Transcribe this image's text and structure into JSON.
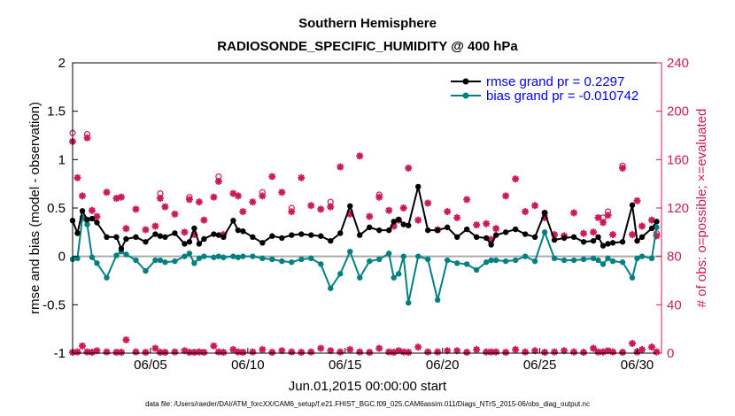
{
  "chart_data": {
    "type": "line",
    "title": "Southern Hemisphere",
    "subtitle": "RADIOSONDE_SPECIFIC_HUMIDITY @ 400 hPa",
    "xlabel": "Jun.01,2015 00:00:00 start",
    "ylabel": "rmse and bias (model - observation)",
    "ylabel_right": "# of obs: o=possible; ×=evaluated",
    "footnote": "data file: /Users/raeder/DAI/ATM_forcXX/CAM6_setup/f.e21.FHIST_BGC.f09_025.CAM6assim.011/Diags_NTrS_2015-06/obs_diag_output.nc",
    "xlim": [
      1,
      31.25
    ],
    "ylim": [
      -1,
      2
    ],
    "ylim_right": [
      0,
      240
    ],
    "x_tick_values": [
      5,
      10,
      15,
      20,
      25,
      30
    ],
    "x_tick_labels": [
      "06/05",
      "06/10",
      "06/15",
      "06/20",
      "06/25",
      "06/30"
    ],
    "y_tick_values": [
      -1,
      -0.5,
      0,
      0.5,
      1,
      1.5,
      2
    ],
    "y_tick_labels": [
      "-1",
      "-0.5",
      "0",
      "0.5",
      "1",
      "1.5",
      "2"
    ],
    "y_right_tick_values": [
      0,
      40,
      80,
      120,
      160,
      200,
      240
    ],
    "y_right_tick_labels": [
      "0",
      "40",
      "80",
      "120",
      "160",
      "200",
      "240"
    ],
    "legend_position": "top-right",
    "colors": {
      "rmse": "#000000",
      "bias": "#008080",
      "obs": "#cc1a55",
      "zero_line": "#aaaaaa"
    },
    "series": [
      {
        "name": "rmse grand pr = 0.2297",
        "axis": "left",
        "x": [
          1,
          1.25,
          1.5,
          1.75,
          2,
          2.25,
          2.75,
          3.25,
          3.5,
          3.75,
          4.25,
          4.75,
          5.25,
          5.5,
          5.75,
          6.25,
          6.75,
          7,
          7.25,
          7.5,
          7.75,
          8.25,
          8.5,
          8.75,
          9.25,
          9.5,
          9.75,
          10.25,
          10.75,
          11.25,
          11.75,
          12.25,
          12.75,
          13.25,
          13.75,
          14.25,
          14.75,
          15.25,
          15.75,
          16.25,
          16.75,
          17.25,
          17.5,
          17.75,
          18,
          18.25,
          18.75,
          19.25,
          19.75,
          20.25,
          20.75,
          21.25,
          21.75,
          22.25,
          22.5,
          22.75,
          23.25,
          23.75,
          24.25,
          24.75,
          25.25,
          25.75,
          26.25,
          26.75,
          27.25,
          27.75,
          28,
          28.25,
          28.5,
          28.75,
          29.25,
          29.75,
          30,
          30.25,
          30.75,
          31
        ],
        "values": [
          0.37,
          0.24,
          0.47,
          0.38,
          0.39,
          0.35,
          0.2,
          0.2,
          0.08,
          0.18,
          0.2,
          0.15,
          0.23,
          0.21,
          0.2,
          0.24,
          0.13,
          0.15,
          0.29,
          0.13,
          0.18,
          0.23,
          0.22,
          0.2,
          0.37,
          0.27,
          0.26,
          0.2,
          0.14,
          0.21,
          0.19,
          0.22,
          0.23,
          0.22,
          0.21,
          0.16,
          0.24,
          0.52,
          0.22,
          0.3,
          0.27,
          0.27,
          0.36,
          0.38,
          0.33,
          0.32,
          0.72,
          0.27,
          0.27,
          0.3,
          0.2,
          0.28,
          0.2,
          0.19,
          0.12,
          0.22,
          0.25,
          0.28,
          0.23,
          0.2,
          0.45,
          0.17,
          0.19,
          0.2,
          0.15,
          0.16,
          0.2,
          0.11,
          0.13,
          0.14,
          0.15,
          0.53,
          0.16,
          0.2,
          0.29,
          0.36
        ]
      },
      {
        "name": "bias grand pr = -0.010742",
        "axis": "left",
        "x": [
          1,
          1.25,
          1.5,
          1.75,
          2,
          2.25,
          2.75,
          3.25,
          3.5,
          3.75,
          4.25,
          4.75,
          5.25,
          5.5,
          5.75,
          6.25,
          6.75,
          7,
          7.25,
          7.5,
          7.75,
          8.25,
          8.5,
          8.75,
          9.25,
          9.5,
          9.75,
          10.25,
          10.75,
          11.25,
          11.75,
          12.25,
          12.75,
          13.25,
          13.75,
          14.25,
          14.75,
          15.25,
          15.75,
          16.25,
          16.75,
          17.25,
          17.5,
          17.75,
          18,
          18.25,
          18.75,
          19.25,
          19.75,
          20.25,
          20.75,
          21.25,
          21.75,
          22.25,
          22.5,
          22.75,
          23.25,
          23.75,
          24.25,
          24.75,
          25.25,
          25.75,
          26.25,
          26.75,
          27.25,
          27.75,
          28,
          28.25,
          28.5,
          28.75,
          29.25,
          29.75,
          30,
          30.25,
          30.75,
          31
        ],
        "values": [
          -0.03,
          -0.02,
          0.4,
          0.33,
          -0.01,
          -0.07,
          -0.22,
          0.01,
          0.05,
          0.02,
          -0.04,
          -0.15,
          -0.04,
          -0.04,
          -0.06,
          -0.05,
          0.0,
          0.03,
          -0.07,
          -0.02,
          0.0,
          -0.01,
          0.0,
          -0.01,
          0.0,
          -0.01,
          0.0,
          0.0,
          -0.02,
          -0.03,
          -0.05,
          -0.06,
          -0.03,
          -0.02,
          -0.08,
          -0.33,
          -0.18,
          0.05,
          -0.22,
          -0.05,
          -0.03,
          0.03,
          -0.22,
          -0.18,
          0.0,
          -0.48,
          0.0,
          -0.03,
          -0.45,
          -0.04,
          -0.07,
          -0.08,
          -0.14,
          -0.06,
          -0.04,
          -0.04,
          -0.05,
          -0.04,
          0.0,
          -0.05,
          0.25,
          -0.02,
          -0.04,
          -0.04,
          -0.03,
          -0.02,
          -0.04,
          -0.08,
          -0.02,
          -0.05,
          -0.06,
          -0.22,
          -0.02,
          0.0,
          -0.02,
          0.3
        ]
      },
      {
        "name": "obs possible",
        "axis": "right",
        "x": [
          1,
          1.25,
          1.5,
          1.75,
          2,
          2.25,
          2.75,
          3.25,
          3.5,
          3.75,
          4.25,
          4.75,
          5.25,
          5.5,
          5.75,
          6.25,
          6.75,
          7,
          7.25,
          7.5,
          7.75,
          8.25,
          8.5,
          8.75,
          9.25,
          9.5,
          9.75,
          10.25,
          10.75,
          11.25,
          11.75,
          12.25,
          12.75,
          13.25,
          13.75,
          14.25,
          14.75,
          15.25,
          15.75,
          16.25,
          16.75,
          17.25,
          17.5,
          17.75,
          18,
          18.25,
          18.75,
          19.25,
          19.75,
          20.25,
          20.75,
          21.25,
          21.75,
          22.25,
          22.5,
          22.75,
          23.25,
          23.75,
          24.25,
          24.75,
          25.25,
          25.75,
          26.25,
          26.75,
          27.25,
          27.75,
          28,
          28.25,
          28.5,
          28.75,
          29.25,
          29.75,
          30,
          30.25,
          30.75,
          31
        ],
        "values": [
          182,
          145,
          130,
          181,
          118,
          113,
          133,
          128,
          129,
          104,
          120,
          103,
          106,
          132,
          122,
          115,
          101,
          129,
          98,
          126,
          111,
          129,
          146,
          99,
          132,
          131,
          118,
          126,
          133,
          146,
          133,
          120,
          146,
          123,
          120,
          125,
          155,
          117,
          163,
          113,
          131,
          118,
          106,
          110,
          120,
          153,
          111,
          125,
          103,
          117,
          112,
          127,
          107,
          107,
          95,
          103,
          130,
          145,
          117,
          123,
          116,
          98,
          97,
          116,
          100,
          101,
          113,
          112,
          117,
          98,
          155,
          98,
          127,
          106,
          110,
          99
        ],
        "labels_visible": true
      },
      {
        "name": "obs evaluated",
        "axis": "right",
        "x": [
          1,
          1.25,
          1.5,
          1.75,
          2,
          2.25,
          2.75,
          3.25,
          3.5,
          3.75,
          4.25,
          4.75,
          5.25,
          5.5,
          5.75,
          6.25,
          6.75,
          7,
          7.25,
          7.5,
          7.75,
          8.25,
          8.5,
          8.75,
          9.25,
          9.5,
          9.75,
          10.25,
          10.75,
          11.25,
          11.75,
          12.25,
          12.75,
          13.25,
          13.75,
          14.25,
          14.75,
          15.25,
          15.75,
          16.25,
          16.75,
          17.25,
          17.5,
          17.75,
          18,
          18.25,
          18.75,
          19.25,
          19.75,
          20.25,
          20.75,
          21.25,
          21.75,
          22.25,
          22.5,
          22.75,
          23.25,
          23.75,
          24.25,
          24.75,
          25.25,
          25.75,
          26.25,
          26.75,
          27.25,
          27.75,
          28,
          28.25,
          28.5,
          28.75,
          29.25,
          29.75,
          30,
          30.25,
          30.75,
          31
        ],
        "values": [
          175,
          145,
          130,
          178,
          118,
          113,
          133,
          128,
          129,
          103,
          119,
          102,
          105,
          128,
          121,
          115,
          100,
          127,
          98,
          125,
          110,
          129,
          142,
          98,
          132,
          130,
          117,
          125,
          130,
          146,
          133,
          117,
          145,
          122,
          119,
          121,
          154,
          115,
          163,
          113,
          129,
          118,
          105,
          110,
          120,
          153,
          110,
          124,
          102,
          117,
          112,
          127,
          106,
          107,
          94,
          103,
          130,
          144,
          117,
          122,
          112,
          98,
          97,
          116,
          99,
          100,
          112,
          108,
          114,
          98,
          153,
          98,
          126,
          105,
          110,
          97
        ]
      },
      {
        "name": "obs evaluated (low)",
        "axis": "right",
        "x": [
          1,
          1.25,
          1.5,
          1.75,
          2,
          2.25,
          2.75,
          3.25,
          3.5,
          3.75,
          4.25,
          4.75,
          5.25,
          5.5,
          5.75,
          6.25,
          6.75,
          7,
          7.25,
          7.5,
          7.75,
          8.25,
          8.5,
          8.75,
          9.25,
          9.5,
          9.75,
          10.25,
          10.75,
          11.25,
          11.75,
          12.25,
          12.75,
          13.25,
          13.75,
          14.25,
          14.75,
          15.25,
          15.75,
          16.25,
          16.75,
          17.25,
          17.5,
          17.75,
          18,
          18.25,
          18.75,
          19.25,
          19.75,
          20.25,
          20.75,
          21.25,
          21.75,
          22.25,
          22.5,
          22.75,
          23.25,
          23.75,
          24.25,
          24.75,
          25.25,
          25.75,
          26.25,
          26.75,
          27.25,
          27.75,
          28,
          28.25,
          28.5,
          28.75,
          29.25,
          29.75,
          30,
          30.25,
          30.75,
          31
        ],
        "values": [
          0,
          1,
          6,
          1,
          0,
          2,
          1,
          0,
          0,
          11,
          1,
          0,
          4,
          0,
          0,
          1,
          2,
          0,
          0,
          1,
          0,
          6,
          1,
          0,
          3,
          1,
          0,
          1,
          3,
          0,
          2,
          1,
          0,
          1,
          4,
          2,
          1,
          3,
          1,
          0,
          4,
          1,
          0,
          2,
          1,
          0,
          5,
          1,
          1,
          2,
          2,
          0,
          3,
          1,
          1,
          1,
          0,
          3,
          1,
          2,
          0,
          1,
          2,
          1,
          0,
          4,
          1,
          1,
          2,
          1,
          0,
          8,
          1,
          3,
          5,
          1
        ]
      }
    ]
  }
}
